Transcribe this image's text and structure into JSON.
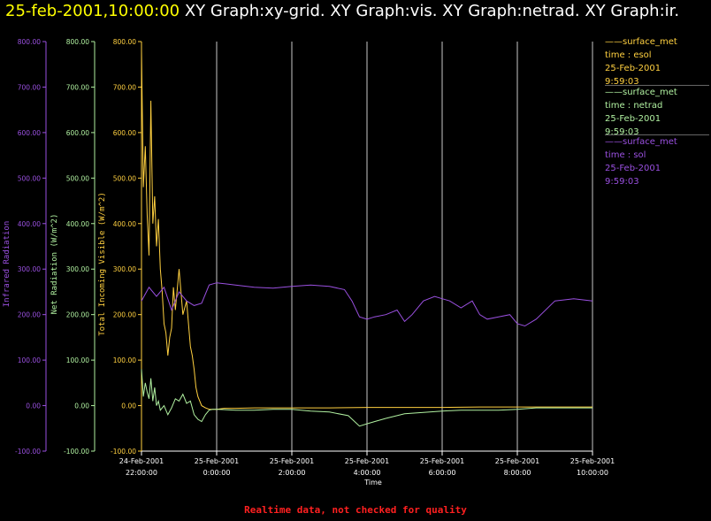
{
  "header": {
    "time": "25-feb-2001,10:00:00",
    "titles": "XY Graph:xy-grid.  XY Graph:vis.  XY Graph:netrad.  XY Graph:ir."
  },
  "footer": "Realtime data, not checked for quality",
  "chart_data": {
    "type": "line",
    "xlabel": "Time",
    "x_ticks": [
      {
        "date": "24-Feb-2001",
        "time": "22:00:00"
      },
      {
        "date": "25-Feb-2001",
        "time": "0:00:00"
      },
      {
        "date": "25-Feb-2001",
        "time": "2:00:00"
      },
      {
        "date": "25-Feb-2001",
        "time": "4:00:00"
      },
      {
        "date": "25-Feb-2001",
        "time": "6:00:00"
      },
      {
        "date": "25-Feb-2001",
        "time": "8:00:00"
      },
      {
        "date": "25-Feb-2001",
        "time": "10:00:00"
      }
    ],
    "x_unit": "hours after 24-Feb-2001 22:00:00",
    "xlim": [
      0,
      12
    ],
    "grid": true,
    "axes": [
      {
        "id": "ir",
        "label": "Infrared Radiation",
        "color": "#9a50e0",
        "ylim": [
          -100,
          800
        ],
        "ticks": [
          "-100.00",
          "0.00",
          "100.00",
          "200.00",
          "300.00",
          "400.00",
          "500.00",
          "600.00",
          "700.00",
          "800.00"
        ]
      },
      {
        "id": "netrad",
        "label": "Net Radiation (W/m^2)",
        "color": "#b0f0a0",
        "ylim": [
          -100,
          800
        ],
        "ticks": [
          "-100.00",
          "0.00",
          "100.00",
          "200.00",
          "300.00",
          "400.00",
          "500.00",
          "600.00",
          "700.00",
          "800.00"
        ]
      },
      {
        "id": "vis",
        "label": "Total Incoming Visible (W/m^2)",
        "color": "#ffd040",
        "ylim": [
          -100,
          800
        ],
        "ticks": [
          "-100.00",
          "0.00",
          "100.00",
          "200.00",
          "300.00",
          "400.00",
          "500.00",
          "600.00",
          "700.00",
          "800.00"
        ]
      }
    ],
    "legend": [
      {
        "name": "surface_met",
        "var": "time : esol",
        "date": "25-Feb-2001",
        "time": "9:59:03",
        "color": "#ffd040"
      },
      {
        "name": "surface_met",
        "var": "time : netrad",
        "date": "25-Feb-2001",
        "time": "9:59:03",
        "color": "#b0f0a0"
      },
      {
        "name": "surface_met",
        "var": "time : sol",
        "date": "25-Feb-2001",
        "time": "9:59:03",
        "color": "#9a50e0"
      }
    ],
    "series": [
      {
        "axis": "vis",
        "x": [
          0,
          0.05,
          0.1,
          0.15,
          0.2,
          0.25,
          0.3,
          0.35,
          0.4,
          0.45,
          0.5,
          0.55,
          0.6,
          0.65,
          0.7,
          0.75,
          0.8,
          0.85,
          0.9,
          1.0,
          1.1,
          1.2,
          1.3,
          1.35,
          1.4,
          1.45,
          1.5,
          1.55,
          1.6,
          1.7,
          1.8,
          1.9,
          2.0,
          2.2,
          2.5,
          3,
          4,
          5,
          6,
          7,
          8,
          9,
          10,
          11,
          12
        ],
        "values": [
          780,
          480,
          570,
          420,
          330,
          670,
          400,
          460,
          350,
          410,
          300,
          250,
          180,
          160,
          110,
          150,
          170,
          260,
          210,
          300,
          200,
          230,
          130,
          110,
          80,
          40,
          20,
          10,
          0,
          -5,
          -8,
          -8,
          -8,
          -6,
          -6,
          -5,
          -5,
          -5,
          -4,
          -4,
          -4,
          -3,
          -3,
          -3,
          -3
        ]
      },
      {
        "axis": "netrad",
        "x": [
          0,
          0.05,
          0.1,
          0.15,
          0.2,
          0.25,
          0.3,
          0.35,
          0.4,
          0.45,
          0.5,
          0.6,
          0.7,
          0.8,
          0.9,
          1.0,
          1.1,
          1.2,
          1.3,
          1.4,
          1.5,
          1.6,
          1.7,
          1.8,
          1.9,
          2,
          2.5,
          3,
          3.5,
          4,
          4.5,
          5,
          5.5,
          5.8,
          6,
          6.2,
          6.5,
          7,
          7.5,
          8,
          8.5,
          9,
          9.5,
          10,
          10.5,
          11,
          11.5,
          12
        ],
        "values": [
          80,
          20,
          50,
          30,
          15,
          60,
          10,
          40,
          0,
          10,
          -10,
          0,
          -20,
          -5,
          15,
          10,
          25,
          5,
          10,
          -20,
          -30,
          -35,
          -20,
          -10,
          -8,
          -8,
          -10,
          -10,
          -8,
          -8,
          -12,
          -14,
          -22,
          -45,
          -40,
          -35,
          -28,
          -18,
          -15,
          -12,
          -10,
          -10,
          -10,
          -8,
          -5,
          -5,
          -5,
          -5
        ]
      },
      {
        "axis": "ir",
        "x": [
          0,
          0.2,
          0.4,
          0.6,
          0.8,
          1.0,
          1.2,
          1.4,
          1.6,
          1.8,
          2.0,
          2.5,
          3,
          3.5,
          4,
          4.5,
          5,
          5.4,
          5.6,
          5.8,
          6,
          6.2,
          6.5,
          6.8,
          7,
          7.2,
          7.5,
          7.8,
          8,
          8.2,
          8.5,
          8.8,
          9,
          9.2,
          9.5,
          9.8,
          10,
          10.2,
          10.5,
          11,
          11.5,
          12
        ],
        "values": [
          230,
          260,
          240,
          260,
          210,
          250,
          230,
          220,
          225,
          265,
          270,
          265,
          260,
          258,
          262,
          265,
          262,
          255,
          230,
          195,
          190,
          195,
          200,
          210,
          185,
          200,
          230,
          240,
          235,
          230,
          215,
          230,
          200,
          190,
          195,
          200,
          180,
          175,
          190,
          230,
          235,
          230
        ]
      }
    ]
  }
}
